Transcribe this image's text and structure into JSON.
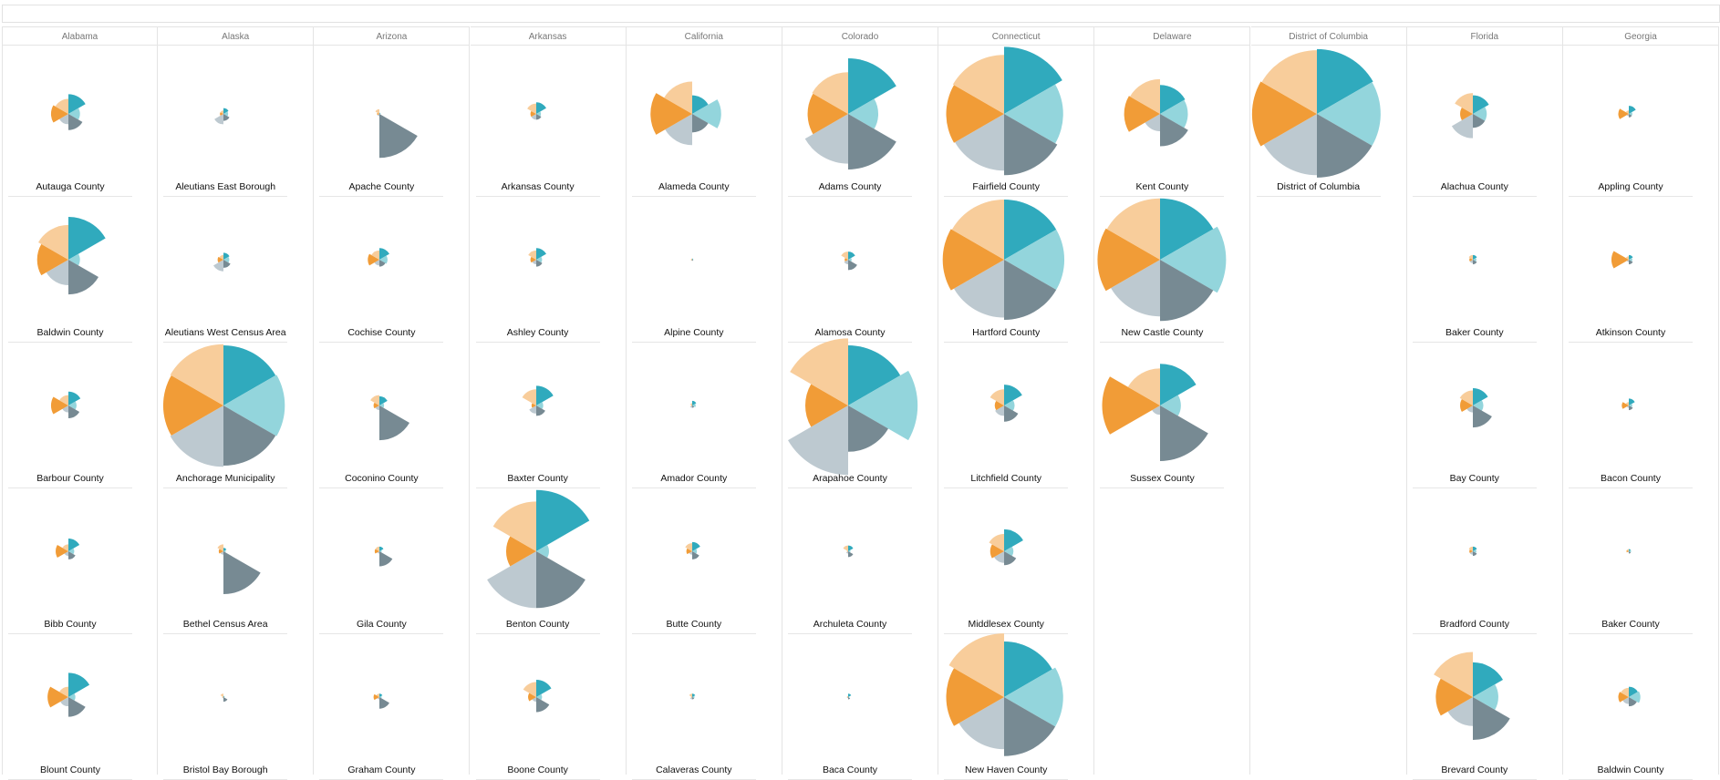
{
  "colors": [
    "#30aabd",
    "#93d5dc",
    "#778a93",
    "#bdc9d0",
    "#f19c37",
    "#f8cd9b"
  ],
  "chart_data": {
    "type": "trellis-polar-area",
    "description_units": "each county is a six-sector polar area (coxcomb) glyph; radius relative to largest county (1.0)",
    "columns": [
      {
        "state": "Alabama",
        "counties": [
          {
            "name": "Autauga County",
            "values": [
              0.17,
              0.1,
              0.14,
              0.09,
              0.15,
              0.13
            ]
          },
          {
            "name": "Baldwin County",
            "values": [
              0.37,
              0.1,
              0.3,
              0.22,
              0.27,
              0.3
            ]
          },
          {
            "name": "Barbour County",
            "values": [
              0.12,
              0.07,
              0.11,
              0.06,
              0.15,
              0.09
            ]
          },
          {
            "name": "Bibb County",
            "values": [
              0.11,
              0.05,
              0.07,
              0.04,
              0.11,
              0.06
            ]
          },
          {
            "name": "Blount County",
            "values": [
              0.21,
              0.06,
              0.17,
              0.08,
              0.18,
              0.09
            ]
          }
        ]
      },
      {
        "state": "Alaska",
        "counties": [
          {
            "name": "Aleutians East Borough",
            "values": [
              0.05,
              0.04,
              0.06,
              0.09,
              0.03,
              0.03
            ]
          },
          {
            "name": "Aleutians West Census Area",
            "values": [
              0.06,
              0.05,
              0.07,
              0.1,
              0.05,
              0.04
            ]
          },
          {
            "name": "Anchorage Municipality",
            "values": [
              0.52,
              0.53,
              0.52,
              0.53,
              0.52,
              0.53
            ]
          },
          {
            "name": "Bethel Census Area",
            "values": [
              0.03,
              0.02,
              0.37,
              0.03,
              0.04,
              0.06
            ]
          },
          {
            "name": "Bristol Bay Borough",
            "values": [
              0.01,
              0.01,
              0.04,
              0.01,
              0.01,
              0.03
            ]
          }
        ]
      },
      {
        "state": "Arizona",
        "counties": [
          {
            "name": "Apache County",
            "values": [
              0.01,
              0.01,
              0.38,
              0.02,
              0.02,
              0.04
            ]
          },
          {
            "name": "Cochise County",
            "values": [
              0.1,
              0.07,
              0.06,
              0.05,
              0.1,
              0.08
            ]
          },
          {
            "name": "Coconino County",
            "values": [
              0.08,
              0.04,
              0.3,
              0.04,
              0.05,
              0.09
            ]
          },
          {
            "name": "Gila County",
            "values": [
              0.04,
              0.02,
              0.13,
              0.02,
              0.04,
              0.04
            ]
          },
          {
            "name": "Graham County",
            "values": [
              0.03,
              0.02,
              0.1,
              0.02,
              0.05,
              0.03
            ]
          }
        ]
      },
      {
        "state": "Arkansas",
        "counties": [
          {
            "name": "Arkansas County",
            "values": [
              0.1,
              0.04,
              0.05,
              0.05,
              0.05,
              0.09
            ]
          },
          {
            "name": "Ashley County",
            "values": [
              0.1,
              0.05,
              0.06,
              0.04,
              0.05,
              0.08
            ]
          },
          {
            "name": "Baxter County",
            "values": [
              0.17,
              0.06,
              0.09,
              0.07,
              0.04,
              0.14
            ]
          },
          {
            "name": "Benton County",
            "values": [
              0.53,
              0.11,
              0.49,
              0.49,
              0.26,
              0.43
            ]
          },
          {
            "name": "Boone County",
            "values": [
              0.15,
              0.05,
              0.13,
              0.04,
              0.07,
              0.13
            ]
          }
        ]
      },
      {
        "state": "California",
        "counties": [
          {
            "name": "Alameda County",
            "values": [
              0.16,
              0.25,
              0.16,
              0.27,
              0.36,
              0.28
            ]
          },
          {
            "name": "Alpine County",
            "values": [
              0.01,
              0.01,
              0.01,
              0.01,
              0.01,
              0.01
            ]
          },
          {
            "name": "Amador County",
            "values": [
              0.04,
              0.03,
              0.02,
              0.02,
              0.01,
              0.02
            ]
          },
          {
            "name": "Butte County",
            "values": [
              0.08,
              0.04,
              0.07,
              0.03,
              0.05,
              0.07
            ]
          },
          {
            "name": "Calaveras County",
            "values": [
              0.03,
              0.02,
              0.02,
              0.02,
              0.01,
              0.03
            ]
          }
        ]
      },
      {
        "state": "Colorado",
        "counties": [
          {
            "name": "Adams County",
            "values": [
              0.48,
              0.26,
              0.48,
              0.43,
              0.35,
              0.36
            ]
          },
          {
            "name": "Alamosa County",
            "values": [
              0.07,
              0.03,
              0.09,
              0.04,
              0.03,
              0.07
            ]
          },
          {
            "name": "Arapahoe County",
            "values": [
              0.52,
              0.6,
              0.4,
              0.6,
              0.37,
              0.58
            ]
          },
          {
            "name": "Archuleta County",
            "values": [
              0.05,
              0.02,
              0.05,
              0.02,
              0.01,
              0.05
            ]
          },
          {
            "name": "Baca County",
            "values": [
              0.03,
              0.01,
              0.02,
              0.01,
              0.01,
              0.01
            ]
          }
        ]
      },
      {
        "state": "Connecticut",
        "counties": [
          {
            "name": "Fairfield County",
            "values": [
              0.58,
              0.51,
              0.53,
              0.49,
              0.5,
              0.51
            ]
          },
          {
            "name": "Hartford County",
            "values": [
              0.52,
              0.52,
              0.52,
              0.5,
              0.53,
              0.52
            ]
          },
          {
            "name": "Litchfield County",
            "values": [
              0.18,
              0.09,
              0.14,
              0.09,
              0.08,
              0.14
            ]
          },
          {
            "name": "Middlesex County",
            "values": [
              0.19,
              0.08,
              0.12,
              0.1,
              0.12,
              0.15
            ]
          },
          {
            "name": "New Haven County",
            "values": [
              0.48,
              0.51,
              0.51,
              0.45,
              0.5,
              0.55
            ]
          }
        ]
      },
      {
        "state": "Delaware",
        "counties": [
          {
            "name": "Kent County",
            "values": [
              0.25,
              0.24,
              0.28,
              0.15,
              0.31,
              0.3
            ]
          },
          {
            "name": "New Castle County",
            "values": [
              0.53,
              0.57,
              0.53,
              0.49,
              0.54,
              0.53
            ]
          },
          {
            "name": "Sussex County",
            "values": [
              0.36,
              0.18,
              0.48,
              0.08,
              0.5,
              0.32
            ]
          }
        ]
      },
      {
        "state": "District of Columbia",
        "counties": [
          {
            "name": "District of Columbia",
            "values": [
              0.56,
              0.55,
              0.55,
              0.53,
              0.56,
              0.55
            ]
          }
        ]
      },
      {
        "state": "Florida",
        "counties": [
          {
            "name": "Alachua County",
            "values": [
              0.16,
              0.12,
              0.12,
              0.21,
              0.11,
              0.18
            ]
          },
          {
            "name": "Baker County",
            "values": [
              0.04,
              0.03,
              0.04,
              0.03,
              0.03,
              0.04
            ]
          },
          {
            "name": "Bay County",
            "values": [
              0.15,
              0.09,
              0.19,
              0.06,
              0.11,
              0.13
            ]
          },
          {
            "name": "Bradford County",
            "values": [
              0.04,
              0.03,
              0.04,
              0.03,
              0.03,
              0.04
            ]
          },
          {
            "name": "Brevard County",
            "values": [
              0.3,
              0.22,
              0.37,
              0.25,
              0.32,
              0.39
            ]
          }
        ]
      },
      {
        "state": "Georgia",
        "counties": [
          {
            "name": "Appling County",
            "values": [
              0.07,
              0.03,
              0.03,
              0.02,
              0.09,
              0.03
            ]
          },
          {
            "name": "Atkinson County",
            "values": [
              0.04,
              0.03,
              0.04,
              0.02,
              0.15,
              0.03
            ]
          },
          {
            "name": "Bacon County",
            "values": [
              0.06,
              0.03,
              0.04,
              0.02,
              0.06,
              0.03
            ]
          },
          {
            "name": "Baker County",
            "values": [
              0.02,
              0.02,
              0.02,
              0.01,
              0.02,
              0.02
            ]
          },
          {
            "name": "Baldwin County",
            "values": [
              0.09,
              0.1,
              0.08,
              0.06,
              0.09,
              0.08
            ]
          }
        ]
      }
    ]
  }
}
